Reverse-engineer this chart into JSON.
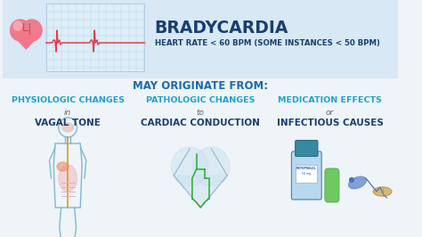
{
  "bg_color": "#eef4f8",
  "title": "BRADYCARDIA",
  "subtitle": "HEART RATE < 60 BPM (SOME INSTANCES < 50 BPM)",
  "may_originate": "MAY ORIGINATE FROM:",
  "col1_line1": "PHYSIOLOGIC CHANGES",
  "col1_line2": "in",
  "col1_line3": "VAGAL TONE",
  "col2_line1": "PATHOLOGIC CHANGES",
  "col2_line2": "to",
  "col2_line3": "CARDIAC CONDUCTION",
  "col3_line1": "MEDICATION EFFECTS",
  "col3_line2": "or",
  "col3_line3": "INFECTIOUS CAUSES",
  "title_color": "#1a3e6e",
  "subtitle_color": "#1a3e6e",
  "may_originate_color": "#1a6ab0",
  "col_header_color": "#20a0d0",
  "col_small_color": "#666666",
  "col_main_color": "#1a3e6e",
  "ecg_line_color": "#e04050",
  "grid_color": "#c0d4e8",
  "header_box_color": "#d8e8f4",
  "ecg_box_color": "#ddeef8"
}
